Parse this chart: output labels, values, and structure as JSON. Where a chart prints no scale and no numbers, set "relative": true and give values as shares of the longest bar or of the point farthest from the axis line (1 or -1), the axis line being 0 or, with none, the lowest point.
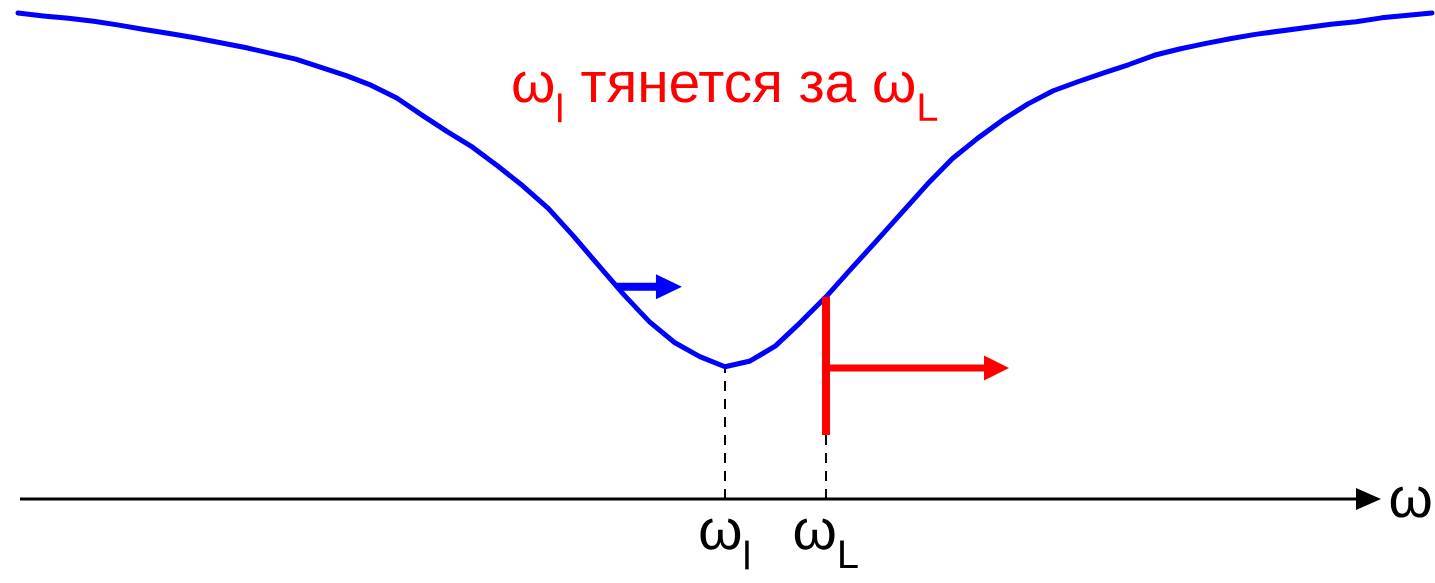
{
  "chart_data": {
    "type": "line",
    "xlabel": "ω",
    "annotations": [
      "ω$_{l}$ тянется за ω$_{L}$"
    ],
    "relative": true,
    "color": "#0000ff",
    "categories": [
      null,
      null,
      null,
      null,
      null,
      null,
      null,
      null,
      null,
      null,
      null,
      null,
      null,
      null,
      null,
      null,
      null,
      null,
      null,
      null,
      null,
      null,
      null,
      null,
      null,
      null,
      null,
      null,
      "ω$_{l}$",
      null,
      null,
      null,
      "ω$_{L}$",
      null,
      null,
      null,
      null,
      null,
      null,
      null,
      null,
      null,
      null,
      null,
      null,
      null,
      null,
      null,
      null,
      null,
      null,
      null,
      null,
      null,
      null,
      null,
      null
    ],
    "values": [
      1.0,
      0.994,
      0.989,
      0.983,
      0.975,
      0.966,
      0.958,
      0.949,
      0.939,
      0.929,
      0.917,
      0.905,
      0.888,
      0.871,
      0.851,
      0.825,
      0.79,
      0.756,
      0.724,
      0.685,
      0.644,
      0.598,
      0.541,
      0.48,
      0.42,
      0.365,
      0.322,
      0.293,
      0.272,
      0.284,
      0.315,
      0.364,
      0.416,
      0.474,
      0.531,
      0.589,
      0.647,
      0.7,
      0.742,
      0.78,
      0.813,
      0.84,
      0.859,
      0.877,
      0.894,
      0.913,
      0.926,
      0.937,
      0.947,
      0.956,
      0.963,
      0.97,
      0.977,
      0.982,
      0.99,
      0.995,
      1.0
    ],
    "ref_lines": [
      {
        "axis": "x",
        "value": "ω$_{l}$",
        "color": "#000000",
        "line_style": "dashed"
      },
      {
        "axis": "x",
        "value": "ω$_{L}$",
        "color": "#000000",
        "line_style": "dashed"
      }
    ]
  }
}
